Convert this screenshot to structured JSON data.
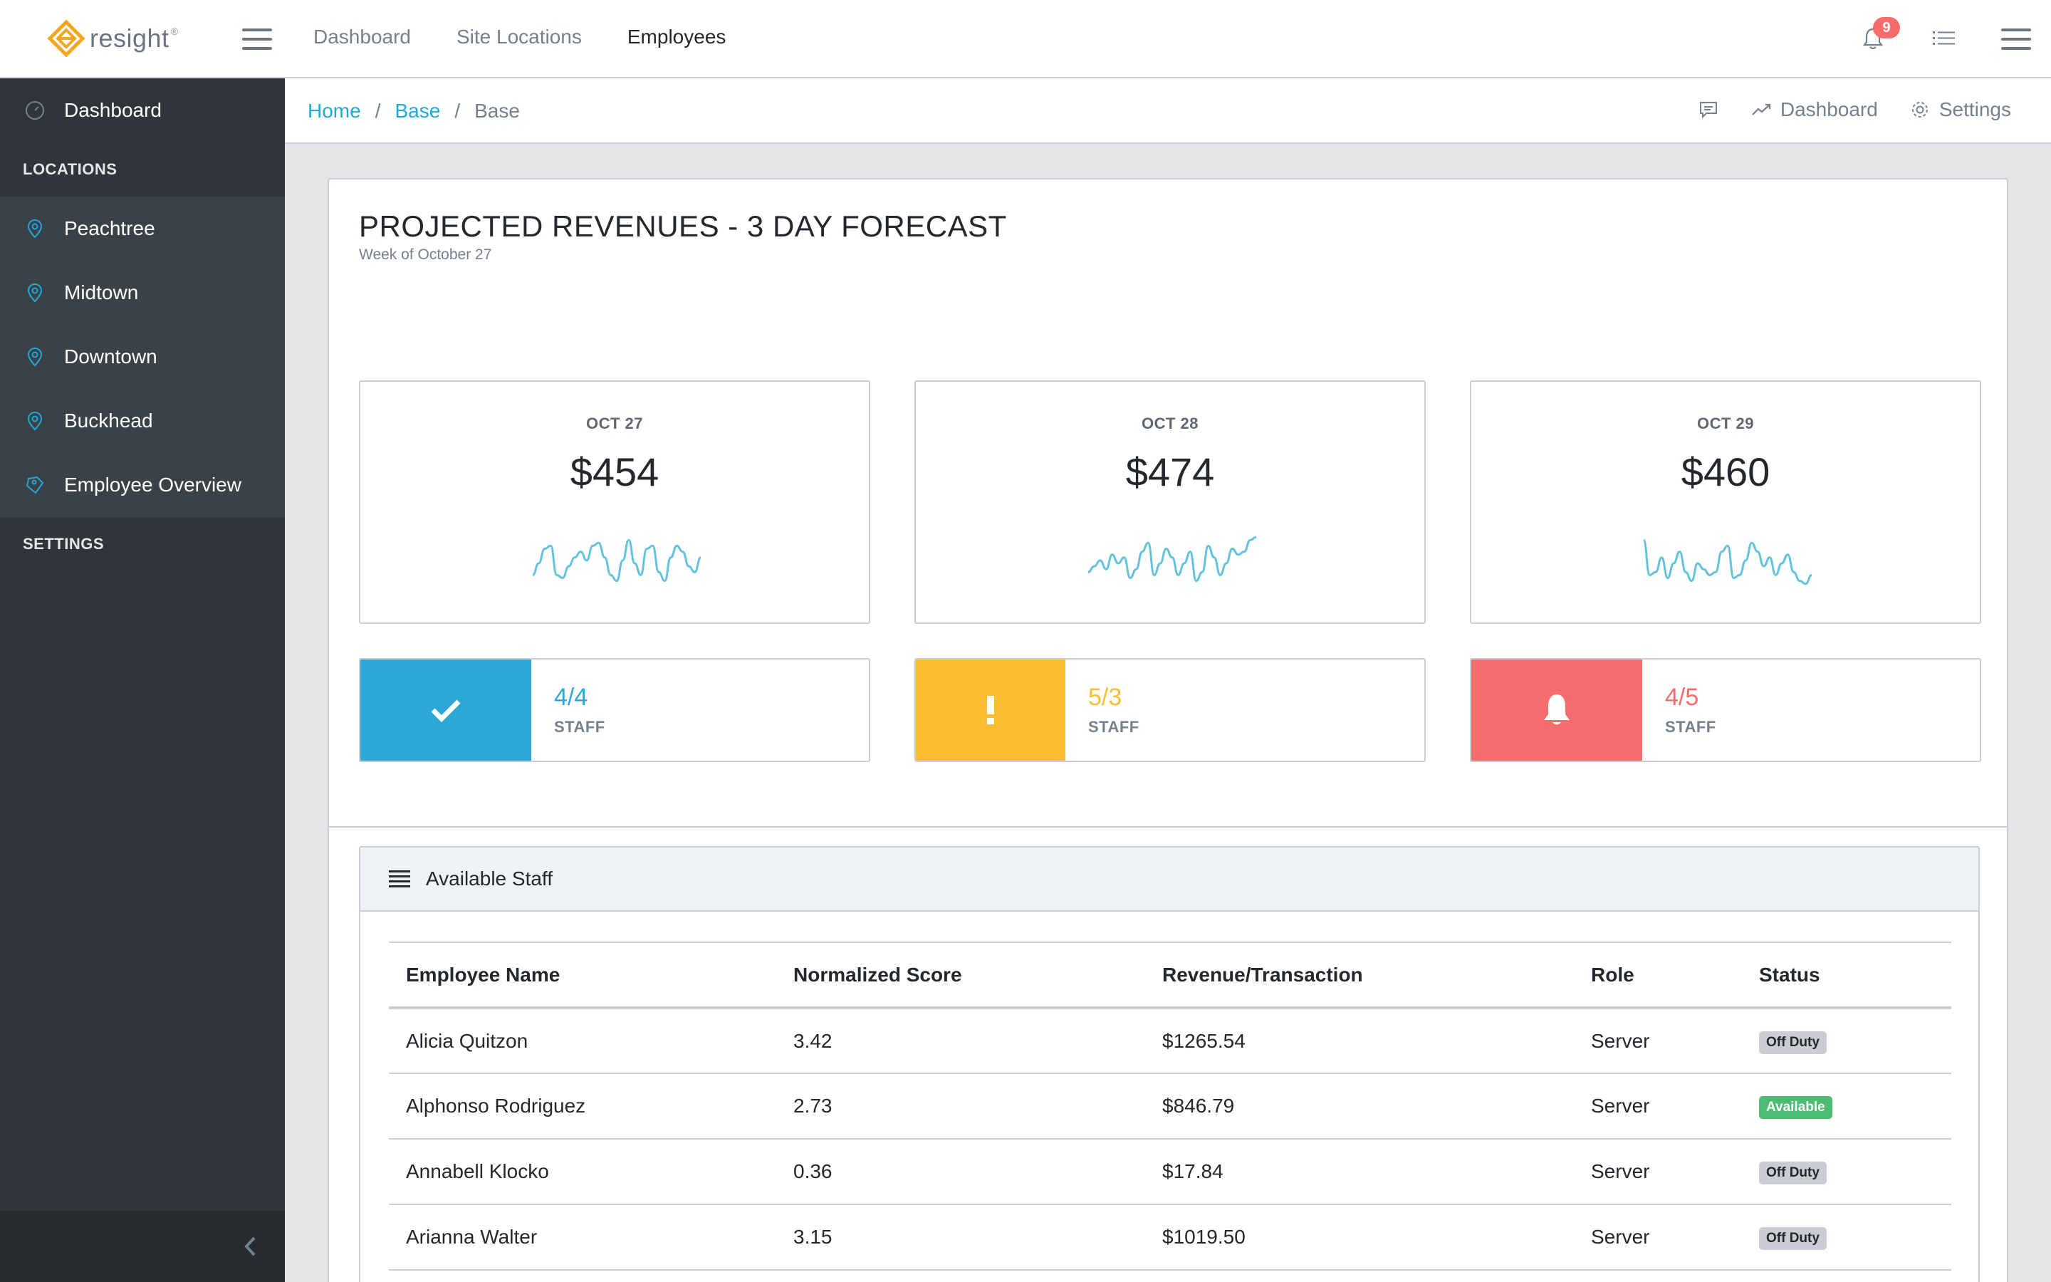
{
  "header": {
    "brand": "resight",
    "brand_mark": "®",
    "nav": [
      "Dashboard",
      "Site Locations",
      "Employees"
    ],
    "active_nav": "Employees",
    "notification_count": "9"
  },
  "sidebar": {
    "dashboard_label": "Dashboard",
    "locations_title": "LOCATIONS",
    "locations": [
      "Peachtree",
      "Midtown",
      "Downtown",
      "Buckhead",
      "Employee Overview"
    ],
    "settings_title": "SETTINGS"
  },
  "breadcrumb": {
    "items": [
      "Home",
      "Base",
      "Base"
    ],
    "menu": {
      "dashboard": "Dashboard",
      "settings": "Settings"
    }
  },
  "forecast": {
    "title": "PROJECTED REVENUES - 3 DAY FORECAST",
    "subtitle": "Week of October 27",
    "days": [
      {
        "date": "OCT 27",
        "amount": "$454",
        "spark": [
          0.3,
          0.5,
          0.75,
          0.8,
          0.3,
          0.25,
          0.45,
          0.6,
          0.7,
          0.55,
          0.8,
          0.85,
          0.6,
          0.3,
          0.2,
          0.55,
          0.9,
          0.5,
          0.3,
          0.75,
          0.8,
          0.35,
          0.2,
          0.6,
          0.8,
          0.7,
          0.45,
          0.35,
          0.6
        ]
      },
      {
        "date": "OCT 28",
        "amount": "$474",
        "spark": [
          0.35,
          0.45,
          0.55,
          0.4,
          0.65,
          0.5,
          0.6,
          0.25,
          0.4,
          0.7,
          0.85,
          0.3,
          0.5,
          0.75,
          0.6,
          0.3,
          0.5,
          0.7,
          0.2,
          0.35,
          0.8,
          0.6,
          0.3,
          0.5,
          0.75,
          0.65,
          0.7,
          0.9,
          0.95
        ]
      },
      {
        "date": "OCT 29",
        "amount": "$460",
        "spark": [
          0.9,
          0.3,
          0.35,
          0.6,
          0.25,
          0.5,
          0.7,
          0.35,
          0.2,
          0.5,
          0.4,
          0.3,
          0.35,
          0.7,
          0.8,
          0.25,
          0.3,
          0.55,
          0.85,
          0.7,
          0.45,
          0.6,
          0.3,
          0.5,
          0.65,
          0.35,
          0.2,
          0.15,
          0.3
        ]
      }
    ],
    "staff": [
      {
        "count": "4/4",
        "label": "STAFF",
        "status": "ok",
        "color": "#2ba8d8",
        "icon": "check-icon"
      },
      {
        "count": "5/3",
        "label": "STAFF",
        "status": "warning",
        "color": "#fbbe32",
        "icon": "exclamation-icon"
      },
      {
        "count": "4/5",
        "label": "STAFF",
        "status": "danger",
        "color": "#f46d6c",
        "icon": "bell-icon"
      }
    ]
  },
  "available_staff": {
    "title": "Available Staff",
    "columns": [
      "Employee Name",
      "Normalized Score",
      "Revenue/Transaction",
      "Role",
      "Status"
    ],
    "rows": [
      {
        "name": "Alicia Quitzon",
        "score": "3.42",
        "revenue": "$1265.54",
        "role": "Server",
        "status": "Off Duty"
      },
      {
        "name": "Alphonso Rodriguez",
        "score": "2.73",
        "revenue": "$846.79",
        "role": "Server",
        "status": "Available"
      },
      {
        "name": "Annabell Klocko",
        "score": "0.36",
        "revenue": "$17.84",
        "role": "Server",
        "status": "Off Duty"
      },
      {
        "name": "Arianna Walter",
        "score": "3.15",
        "revenue": "$1019.50",
        "role": "Server",
        "status": "Off Duty"
      }
    ]
  },
  "colors": {
    "accent": "#20a8d8",
    "sidebar": "#2f353a",
    "spark": "#63c2de"
  }
}
